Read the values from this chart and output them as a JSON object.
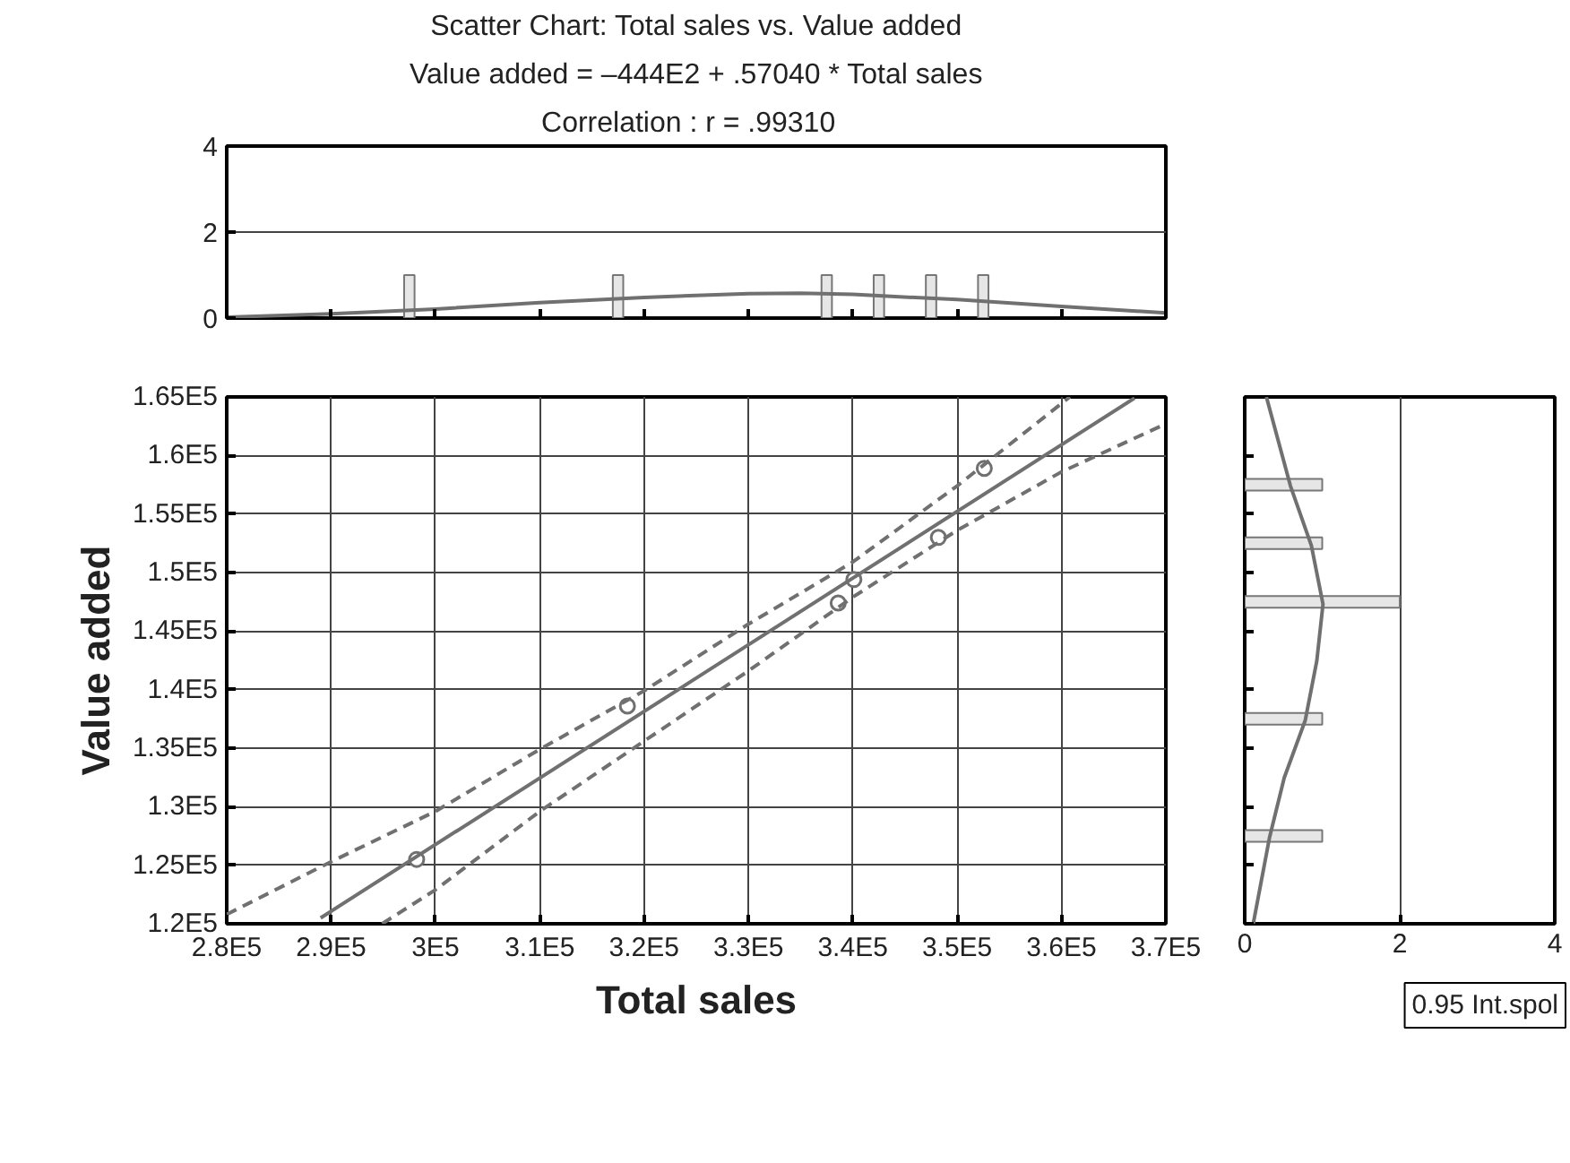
{
  "chart_data": [
    {
      "type": "bar",
      "title": "Scatter Chart: Total sales vs. Value added",
      "subtitle": "Value added = –444E2 + .57040 * Total sales",
      "annotations": [
        "Correlation :   r = .99310"
      ],
      "series": [
        {
          "color": "#e6e6e6",
          "x": [
            297500,
            317500,
            337500,
            342500,
            347500,
            352500
          ],
          "values": [
            1,
            1,
            1,
            1,
            1,
            1
          ]
        },
        {
          "type": "line",
          "marker": "none",
          "color": "#707070",
          "x": [
            280000,
            290000,
            300000,
            310000,
            320000,
            330000,
            335000,
            340000,
            350000,
            360000,
            370000
          ],
          "values": [
            0.02,
            0.1,
            0.21,
            0.36,
            0.48,
            0.57,
            0.58,
            0.55,
            0.43,
            0.27,
            0.12
          ]
        }
      ],
      "xlim": [
        280000,
        370000
      ],
      "xticks": [
        {
          "value": 280000,
          "label": null
        },
        {
          "value": 290000,
          "label": null
        },
        {
          "value": 300000,
          "label": null
        },
        {
          "value": 310000,
          "label": null
        },
        {
          "value": 320000,
          "label": null
        },
        {
          "value": 330000,
          "label": null
        },
        {
          "value": 340000,
          "label": null
        },
        {
          "value": 350000,
          "label": null
        },
        {
          "value": 360000,
          "label": null
        },
        {
          "value": 370000,
          "label": null
        }
      ],
      "ylim": [
        0,
        4
      ],
      "yticks": [
        0,
        2,
        4
      ],
      "grid": "y",
      "tick_labels": "y"
    },
    {
      "type": "scatter",
      "xlabel": "Total sales",
      "ylabel": "Value added",
      "series": [
        {
          "marker": "circle",
          "color": "#707070",
          "x": [
            298200,
            318400,
            338600,
            340100,
            348200,
            352600
          ],
          "values": [
            125500,
            138600,
            147400,
            149400,
            153000,
            158900
          ]
        },
        {
          "type": "line",
          "marker": "none",
          "color": "#707070",
          "x": [
            289000,
            367000
          ],
          "values": [
            120500,
            164900
          ]
        },
        {
          "type": "line",
          "marker": "none",
          "color": "#707070",
          "line_style": "dashed",
          "x": [
            280000,
            290000,
            300000,
            310000,
            320000,
            330000,
            340000,
            350000,
            360800
          ],
          "values": [
            120800,
            125300,
            129600,
            134900,
            139900,
            145600,
            150900,
            157400,
            165000
          ]
        },
        {
          "type": "line",
          "marker": "none",
          "color": "#707070",
          "line_style": "dashed",
          "x": [
            294900,
            300000,
            310000,
            320000,
            330000,
            340000,
            350000,
            360000,
            370000
          ],
          "values": [
            120000,
            122900,
            129600,
            135600,
            141600,
            147900,
            153600,
            158600,
            162700
          ]
        }
      ],
      "xlim": [
        280000,
        370000
      ],
      "xticks": [
        {
          "value": 280000,
          "label": "2.8E5"
        },
        {
          "value": 290000,
          "label": "2.9E5"
        },
        {
          "value": 300000,
          "label": "3E5"
        },
        {
          "value": 310000,
          "label": "3.1E5"
        },
        {
          "value": 320000,
          "label": "3.2E5"
        },
        {
          "value": 330000,
          "label": "3.3E5"
        },
        {
          "value": 340000,
          "label": "3.4E5"
        },
        {
          "value": 350000,
          "label": "3.5E5"
        },
        {
          "value": 360000,
          "label": "3.6E5"
        },
        {
          "value": 370000,
          "label": "3.7E5"
        }
      ],
      "ylim": [
        120000,
        165000
      ],
      "yticks": [
        {
          "value": 120000,
          "label": "1.2E5"
        },
        {
          "value": 125000,
          "label": "1.25E5"
        },
        {
          "value": 130000,
          "label": "1.3E5"
        },
        {
          "value": 135000,
          "label": "1.35E5"
        },
        {
          "value": 140000,
          "label": "1.4E5"
        },
        {
          "value": 145000,
          "label": "1.45E5"
        },
        {
          "value": 150000,
          "label": "1.5E5"
        },
        {
          "value": 155000,
          "label": "1.55E5"
        },
        {
          "value": 160000,
          "label": "1.6E5"
        },
        {
          "value": 165000,
          "label": "1.65E5"
        }
      ],
      "grid": true
    },
    {
      "type": "bar",
      "orientation": "horizontal",
      "annotations": [
        "0.95 Int.spol"
      ],
      "series": [
        {
          "color": "#e6e6e6",
          "x": [
            127500,
            137500,
            147500,
            152500,
            157500
          ],
          "values": [
            1,
            1,
            2,
            1,
            1
          ]
        },
        {
          "type": "line",
          "marker": "none",
          "color": "#707070",
          "x": [
            120000,
            127360,
            132470,
            137350,
            142450,
            147300,
            152300,
            157400,
            165000
          ],
          "values": [
            0.11,
            0.32,
            0.51,
            0.78,
            0.93,
            1.01,
            0.86,
            0.59,
            0.28
          ]
        }
      ],
      "xlim": [
        0,
        4
      ],
      "xticks": [
        0,
        2,
        4
      ],
      "ylim": [
        120000,
        165000
      ],
      "yticks": [
        {
          "value": 120000,
          "label": null
        },
        {
          "value": 125000,
          "label": null
        },
        {
          "value": 130000,
          "label": null
        },
        {
          "value": 135000,
          "label": null
        },
        {
          "value": 140000,
          "label": null
        },
        {
          "value": 145000,
          "label": null
        },
        {
          "value": 150000,
          "label": null
        },
        {
          "value": 155000,
          "label": null
        },
        {
          "value": 160000,
          "label": null
        },
        {
          "value": 165000,
          "label": null
        }
      ],
      "grid": "x",
      "tick_labels": "x"
    }
  ]
}
